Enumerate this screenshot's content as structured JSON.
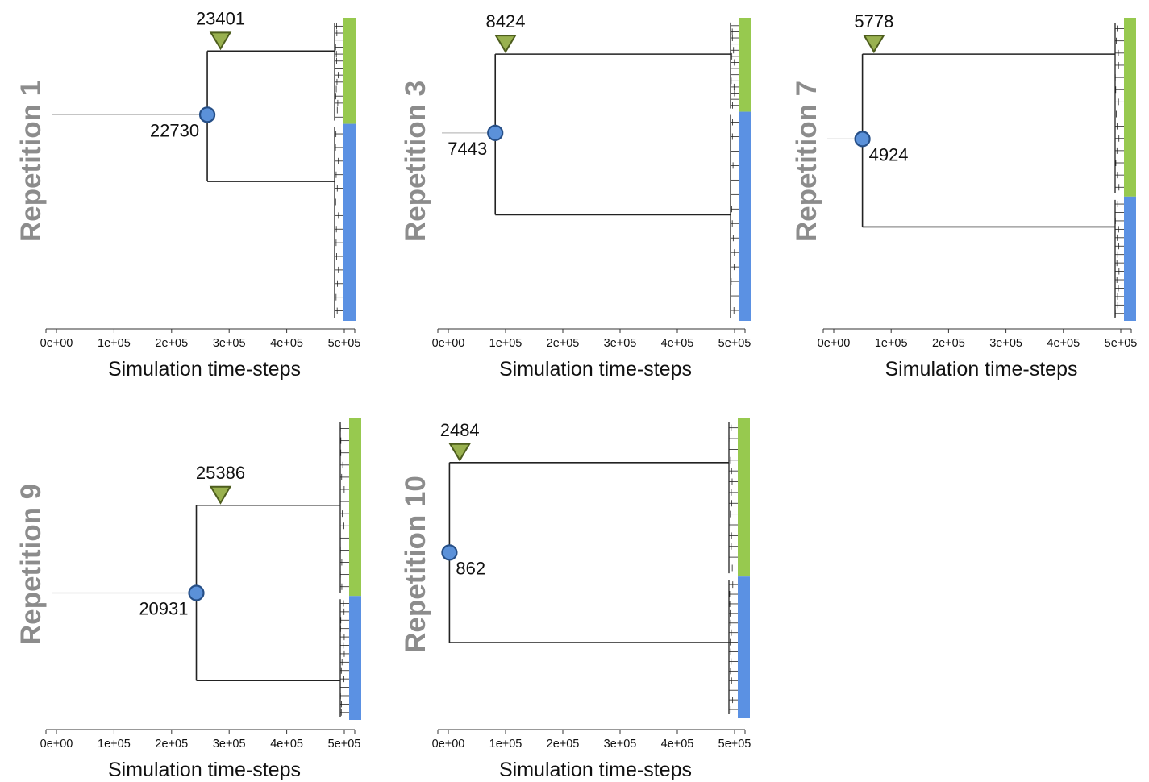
{
  "colors": {
    "green": "#97c94f",
    "blue": "#5b91e3",
    "circle_fill": "#5b91d9",
    "circle_stroke": "#264f87",
    "triangle_fill": "#99b14f",
    "triangle_stroke": "#4d5d1d",
    "title_gray": "#8c8c8c"
  },
  "chart_data": [
    {
      "type": "dendrogram",
      "title": "Repetition 1",
      "xlabel": "Simulation time-steps",
      "xticks": [
        "0e+00",
        "1e+05",
        "2e+05",
        "3e+05",
        "4e+05",
        "5e+05"
      ],
      "xlim": [
        0,
        500000
      ],
      "circle": {
        "label": "22730",
        "x": 262000
      },
      "triangle": {
        "label": "23401",
        "x": 285000
      },
      "top_branch_frac": 0.11,
      "bottom_branch_frac": 0.54,
      "root_frac": 0.32,
      "green_frac": 0.35
    },
    {
      "type": "dendrogram",
      "title": "Repetition 3",
      "xlabel": "Simulation time-steps",
      "xticks": [
        "0e+00",
        "1e+05",
        "2e+05",
        "3e+05",
        "4e+05",
        "5e+05"
      ],
      "xlim": [
        0,
        500000
      ],
      "circle": {
        "label": "7443",
        "x": 82000
      },
      "triangle": {
        "label": "8424",
        "x": 100000
      },
      "top_branch_frac": 0.12,
      "bottom_branch_frac": 0.65,
      "root_frac": 0.38,
      "green_frac": 0.31
    },
    {
      "type": "dendrogram",
      "title": "Repetition 7",
      "xlabel": "Simulation time-steps",
      "xticks": [
        "0e+00",
        "1e+05",
        "2e+05",
        "3e+05",
        "4e+05",
        "5e+05"
      ],
      "xlim": [
        0,
        500000
      ],
      "circle": {
        "label": "4924",
        "x": 50000
      },
      "triangle": {
        "label": "5778",
        "x": 70000
      },
      "top_branch_frac": 0.12,
      "bottom_branch_frac": 0.69,
      "root_frac": 0.4,
      "green_frac": 0.59
    },
    {
      "type": "dendrogram",
      "title": "Repetition 9",
      "xlabel": "Simulation time-steps",
      "xticks": [
        "0e+00",
        "1e+05",
        "2e+05",
        "3e+05",
        "4e+05",
        "5e+05"
      ],
      "xlim": [
        0,
        500000
      ],
      "circle": {
        "label": "20931",
        "x": 243000
      },
      "triangle": {
        "label": "25386",
        "x": 285000
      },
      "top_branch_frac": 0.29,
      "bottom_branch_frac": 0.87,
      "root_frac": 0.58,
      "green_frac": 0.59
    },
    {
      "type": "dendrogram",
      "title": "Repetition 10",
      "xlabel": "Simulation time-steps",
      "xticks": [
        "0e+00",
        "1e+05",
        "2e+05",
        "3e+05",
        "4e+05",
        "5e+05"
      ],
      "xlim": [
        0,
        500000
      ],
      "circle": {
        "label": "862",
        "x": 2000
      },
      "triangle": {
        "label": "2484",
        "x": 20000
      },
      "top_branch_frac": 0.15,
      "bottom_branch_frac": 0.75,
      "root_frac": 0.45,
      "green_frac": 0.53
    }
  ]
}
